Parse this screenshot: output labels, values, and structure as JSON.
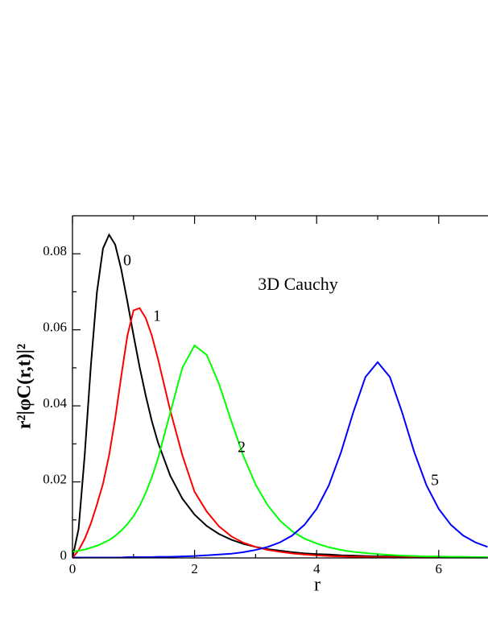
{
  "chart_data": {
    "type": "line",
    "xlabel": "r",
    "ylabel": "r²|φC(r,t)|²",
    "annotations": [
      "0",
      "1",
      "2",
      "5",
      "3D Cauchy"
    ],
    "xlim": [
      0,
      6.8
    ],
    "ylim": [
      0,
      0.09
    ],
    "xticks": [
      0,
      2,
      4,
      6
    ],
    "xminorticks": [
      1,
      3,
      5
    ],
    "yticks": [
      0,
      0.02,
      0.04,
      0.06,
      0.08
    ],
    "yminorticks": [
      0.01,
      0.03,
      0.05,
      0.07
    ],
    "grid": false,
    "x": [
      0,
      0.1,
      0.2,
      0.3,
      0.4,
      0.5,
      0.6,
      0.7,
      0.8,
      0.9,
      1.0,
      1.1,
      1.2,
      1.3,
      1.4,
      1.6,
      1.8,
      2.0,
      2.2,
      2.4,
      2.6,
      2.8,
      3.0,
      3.2,
      3.4,
      3.6,
      3.8,
      4.0,
      4.2,
      4.4,
      4.6,
      4.8,
      5.0,
      5.2,
      5.4,
      5.6,
      5.8,
      6.0,
      6.2,
      6.4,
      6.6,
      6.8
    ],
    "series": [
      {
        "name": "0",
        "color": "#000000",
        "values": [
          0,
          0.0076,
          0.027,
          0.0503,
          0.0698,
          0.0814,
          0.085,
          0.0824,
          0.0758,
          0.0674,
          0.0586,
          0.0502,
          0.0427,
          0.036,
          0.0304,
          0.0217,
          0.0156,
          0.0114,
          0.0084,
          0.0063,
          0.0048,
          0.0037,
          0.0029,
          0.0023,
          0.0019,
          0.0015,
          0.0012,
          0.001,
          0.0009,
          0.0007,
          0.0006,
          0.0005,
          0.0004,
          0.0004,
          0.0003,
          0.0003,
          0.0002,
          0.0002,
          0.0002,
          0.0002,
          0.0001,
          0.0001
        ]
      },
      {
        "name": "1",
        "color": "#ff0000",
        "values": [
          0,
          0.002,
          0.005,
          0.009,
          0.014,
          0.0195,
          0.027,
          0.0367,
          0.0479,
          0.0585,
          0.0651,
          0.0657,
          0.0631,
          0.0585,
          0.0524,
          0.0389,
          0.027,
          0.0174,
          0.0122,
          0.0083,
          0.0057,
          0.004,
          0.0029,
          0.0021,
          0.0016,
          0.0012,
          0.0009,
          0.0007,
          0.0005,
          0.0004,
          0.0003,
          0.0003,
          0.0002,
          0.0002,
          0.0001,
          0.0001,
          0.0001,
          0.0001,
          0.0001,
          0.0001,
          0.0001,
          0.0001
        ]
      },
      {
        "name": "2",
        "color": "#00ff00",
        "values": [
          0.0016,
          0.0019,
          0.0022,
          0.0027,
          0.0032,
          0.0039,
          0.0047,
          0.0058,
          0.0072,
          0.0089,
          0.011,
          0.0137,
          0.0171,
          0.0212,
          0.0261,
          0.0381,
          0.05,
          0.0559,
          0.0534,
          0.0458,
          0.0361,
          0.0268,
          0.0193,
          0.0138,
          0.0098,
          0.007,
          0.0051,
          0.0038,
          0.0028,
          0.0021,
          0.0016,
          0.0013,
          0.001,
          0.0008,
          0.0006,
          0.0005,
          0.0004,
          0.0004,
          0.0003,
          0.0003,
          0.0002,
          0.0002
        ]
      },
      {
        "name": "5",
        "color": "#0000ff",
        "values": [
          0.0001,
          0.0001,
          0.0001,
          0.0001,
          0.0001,
          0.0001,
          0.0001,
          0.0001,
          0.0001,
          0.0002,
          0.0002,
          0.0002,
          0.0002,
          0.0002,
          0.0003,
          0.0003,
          0.0004,
          0.0005,
          0.0007,
          0.0009,
          0.0011,
          0.0015,
          0.0021,
          0.0029,
          0.0041,
          0.0059,
          0.0087,
          0.0129,
          0.0191,
          0.0278,
          0.0383,
          0.0476,
          0.0515,
          0.0476,
          0.0383,
          0.0278,
          0.0191,
          0.0129,
          0.0087,
          0.0059,
          0.0041,
          0.0029
        ]
      }
    ]
  }
}
